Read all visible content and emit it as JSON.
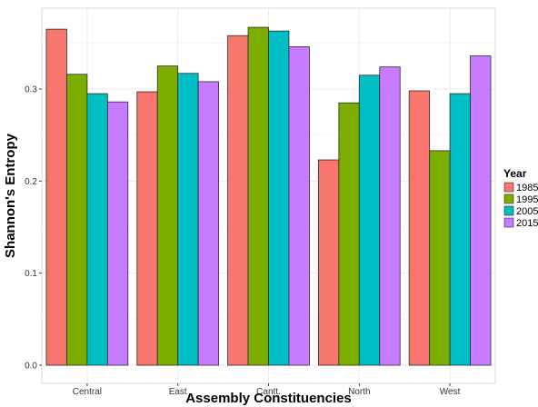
{
  "chart_data": {
    "type": "bar",
    "title": "",
    "xlabel": "Assembly Constituencies",
    "ylabel": "Shannon's Entropy",
    "categories": [
      "Central",
      "East",
      "Cantt.",
      "North",
      "West"
    ],
    "series": [
      {
        "name": "1985",
        "color": "#F8766D",
        "values": [
          0.365,
          0.297,
          0.358,
          0.223,
          0.298
        ]
      },
      {
        "name": "1995",
        "color": "#7CAE00",
        "values": [
          0.316,
          0.325,
          0.367,
          0.285,
          0.233
        ]
      },
      {
        "name": "2005",
        "color": "#00BFC4",
        "values": [
          0.295,
          0.317,
          0.363,
          0.315,
          0.295
        ]
      },
      {
        "name": "2015",
        "color": "#C77CFF",
        "values": [
          0.286,
          0.308,
          0.346,
          0.324,
          0.336
        ]
      }
    ],
    "yticks": [
      "0.0",
      "0.1",
      "0.2",
      "0.3"
    ],
    "ylim": [
      0,
      0.385
    ],
    "grid": true,
    "legend": {
      "title": "Year",
      "position": "right"
    }
  }
}
